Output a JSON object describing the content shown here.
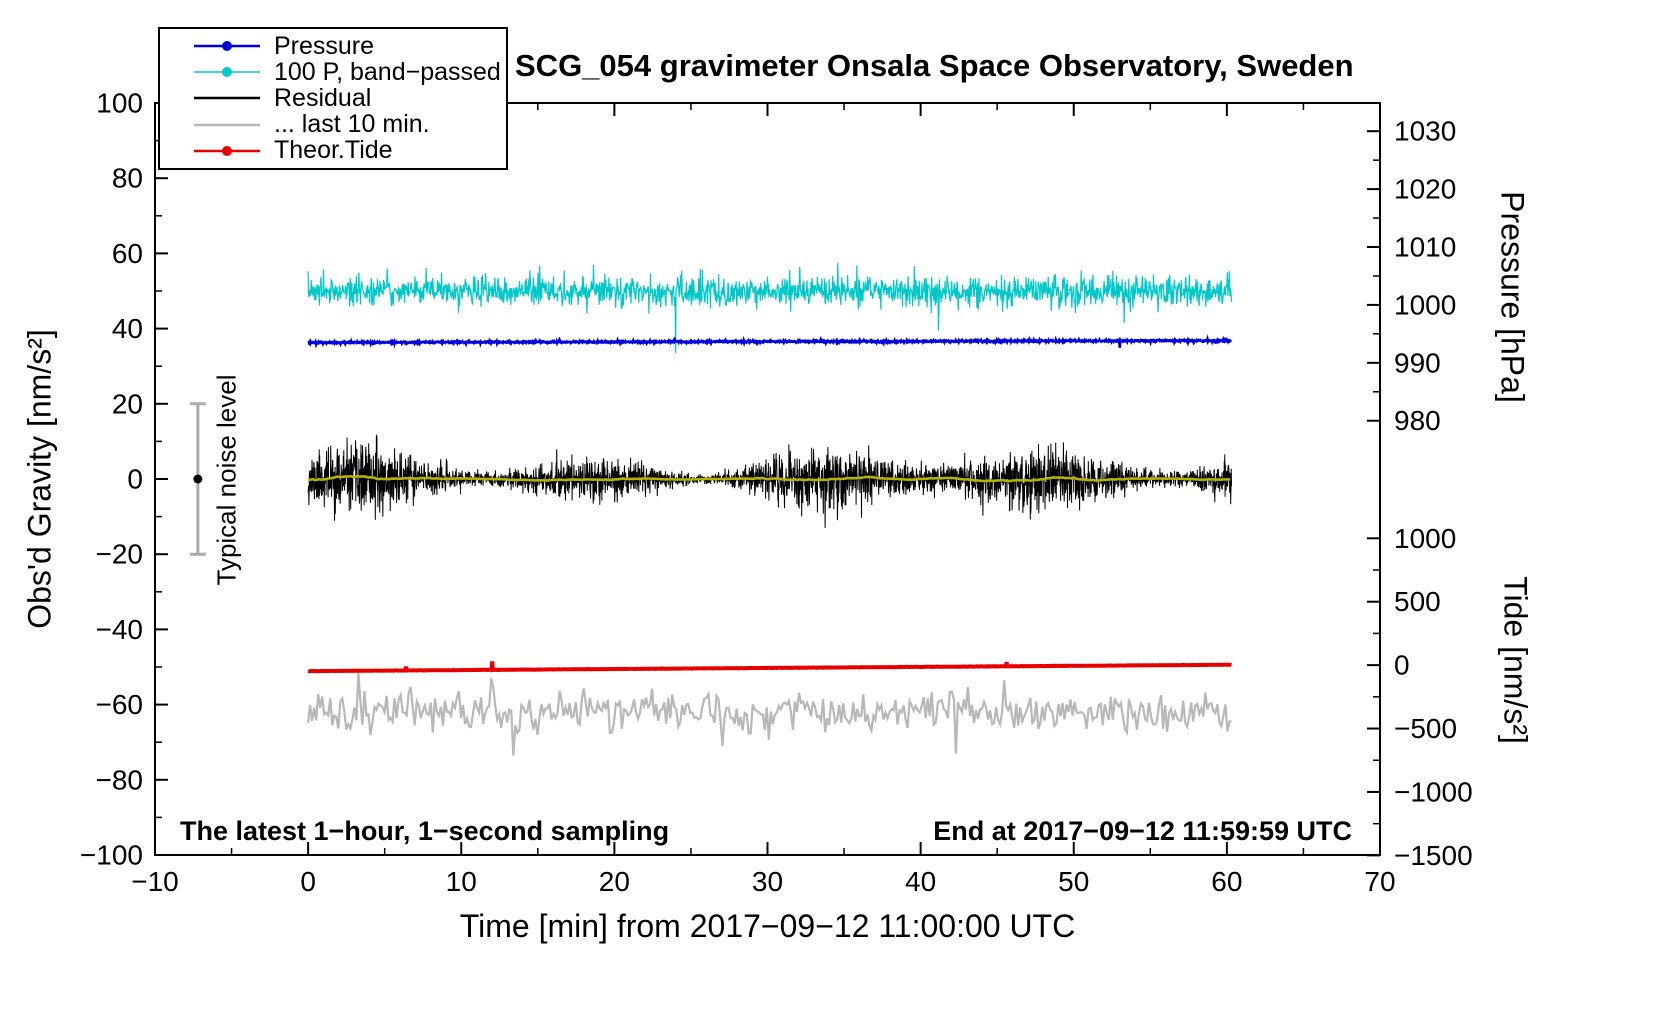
{
  "title": "SCG_054 gravimeter Onsala Space Observatory, Sweden",
  "chart_data": {
    "type": "line",
    "title": "SCG_054 gravimeter Onsala Space Observatory, Sweden",
    "x_axis": {
      "label": "Time [min] from 2017−09−12 11:00:00 UTC",
      "min": -10,
      "max": 70,
      "major": [
        -10,
        0,
        10,
        20,
        30,
        40,
        50,
        60,
        70
      ],
      "minor_step": 5
    },
    "y_left": {
      "label": "Obs'd Gravity [nm/s²]",
      "min": -100,
      "max": 100,
      "major": [
        100,
        80,
        60,
        40,
        20,
        0,
        -20,
        -40,
        -60,
        -80,
        -100
      ],
      "minor_step": 10
    },
    "y_right_pressure": {
      "label": "Pressure [hPa]",
      "major": [
        1030,
        1020,
        1010,
        1000,
        990,
        980
      ],
      "anchor_value": 1000,
      "anchor_gravity": 46.3,
      "gravity_per_unit": 1.54
    },
    "y_right_tide": {
      "label": "Tide [nm/s²]",
      "major": [
        1000,
        500,
        0,
        -500,
        -1000,
        -1500
      ],
      "anchor_value": 0,
      "anchor_gravity": -49.5,
      "gravity_per_unit": 0.03373
    },
    "annotations": {
      "sampling": "The latest 1−hour, 1−second sampling",
      "end": "End at 2017−09−12 11:59:59 UTC"
    },
    "noise_bar": {
      "label": "Typical noise level",
      "x": -7.2,
      "center": 0,
      "half_range": 20,
      "color": "#aaaaaa",
      "dot_color": "#000000"
    },
    "legend": [
      {
        "name": "pressure",
        "label": "Pressure",
        "color": "#0000dc",
        "marker": true,
        "width": 2.6
      },
      {
        "name": "band-passed",
        "label": "100 P, band−passed",
        "color": "#00c8c8",
        "marker": true,
        "width": 1.6
      },
      {
        "name": "residual",
        "label": "Residual",
        "color": "#000000",
        "marker": false,
        "width": 2.6
      },
      {
        "name": "last-10-min",
        "label": "... last 10 min.",
        "color": "#b8b8b8",
        "marker": false,
        "width": 2.6
      },
      {
        "name": "theor-tide",
        "label": "Theor.Tide",
        "color": "#e60000",
        "marker": true,
        "width": 2.6
      }
    ],
    "series": [
      {
        "name": "band_passed",
        "legend": "100 P, band−passed",
        "color": "#00c8c8",
        "width": 1.2,
        "baseline": 50,
        "trend": 0,
        "noise_sd": 1.9,
        "n": 1800,
        "x_start": 0,
        "x_end": 60.3,
        "seed": 7,
        "spike_prob": 0.012,
        "spike_scale": 3.5,
        "spikes": [
          {
            "x": 24,
            "y": 33.5
          },
          {
            "x": 53.3,
            "y": 41.5
          },
          {
            "x": 34.6,
            "y": 57.5
          }
        ]
      },
      {
        "name": "pressure",
        "legend": "Pressure",
        "color": "#0000dc",
        "width": 2.6,
        "baseline": 36.3,
        "trend": 0.5,
        "noise_sd": 0.13,
        "n": 2000,
        "x_start": 0,
        "x_end": 60.3,
        "seed": 3,
        "spikes": [
          {
            "x": 53,
            "y": 34.9
          }
        ]
      },
      {
        "name": "residual",
        "legend": "Residual",
        "color": "#000000",
        "width": 1,
        "baseline": 0,
        "trend": 0,
        "noise_sd": 3.4,
        "n": 3600,
        "x_start": 0,
        "x_end": 60.3,
        "seed": 11,
        "envelope": true
      },
      {
        "name": "residual_smooth",
        "legend": "",
        "color": "#b4b400",
        "width": 2.6,
        "derived": "residual",
        "window": 80,
        "x_start": 0,
        "x_end": 60.3
      },
      {
        "name": "last10",
        "legend": "... last 10 min.",
        "color": "#b8b8b8",
        "width": 2.2,
        "baseline": -62,
        "trend": 0,
        "noise_sd": 2.6,
        "n": 460,
        "x_start": 0,
        "x_end": 60.3,
        "seed": 19,
        "spike_prob": 0.02,
        "spike_scale": 5,
        "spikes": [
          {
            "x": 11.9,
            "y": -53
          },
          {
            "x": 45.5,
            "y": -53.5
          },
          {
            "x": 13.4,
            "y": -73.5
          },
          {
            "x": 42.3,
            "y": -73
          }
        ]
      },
      {
        "name": "tide",
        "legend": "Theor.Tide",
        "color": "#e60000",
        "width": 4,
        "baseline": -51.1,
        "trend": 1.7,
        "noise_sd": 0.02,
        "n": 1200,
        "x_start": 0,
        "x_end": 60.3,
        "seed": 23,
        "spikes": [
          {
            "x": 6.4,
            "y": -49.9
          },
          {
            "x": 12,
            "y": -48.5
          },
          {
            "x": 45.6,
            "y": -48.7
          }
        ]
      }
    ]
  }
}
